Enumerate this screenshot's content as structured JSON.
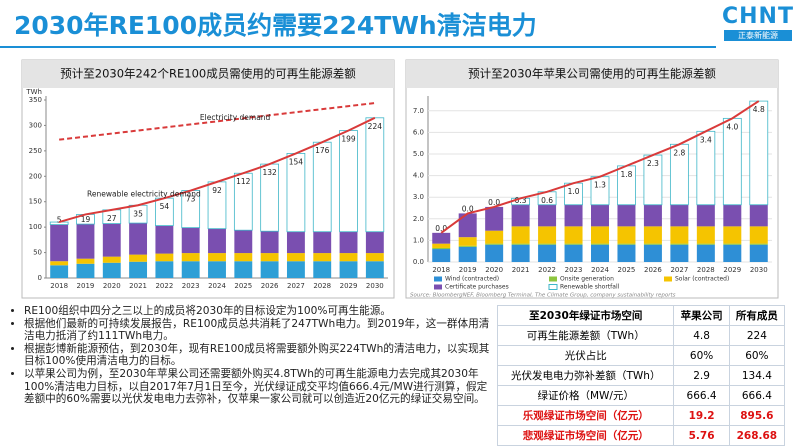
{
  "header": {
    "title": "2030年RE100成员约需要224TWh清洁电力",
    "logo": "CHNT",
    "logo_sub": "正泰新能源"
  },
  "chart_data": [
    {
      "type": "bar",
      "title": "预计至2030年242个RE100成员需使用的可再生能源差额",
      "y_unit": "TWh",
      "annotations": [
        "Electricity demand",
        "Renewable electricity demand"
      ],
      "categories": [
        "2018",
        "2019",
        "2020",
        "2021",
        "2022",
        "2023",
        "2024",
        "2025",
        "2026",
        "2027",
        "2028",
        "2029",
        "2030"
      ],
      "ylim": [
        0,
        350
      ],
      "yticks": [
        0,
        50,
        100,
        150,
        200,
        250,
        300,
        350
      ],
      "grid": false,
      "series": [
        {
          "color": "#2e9fd6",
          "values": [
            25,
            28,
            30,
            32,
            33,
            33,
            33,
            33,
            33,
            33,
            33,
            33,
            33
          ]
        },
        {
          "color": "#f5c400",
          "values": [
            8,
            10,
            12,
            14,
            15,
            16,
            16,
            16,
            16,
            16,
            16,
            16,
            16
          ]
        },
        {
          "color": "#7a4fb0",
          "values": [
            72,
            68,
            65,
            62,
            55,
            50,
            48,
            45,
            43,
            42,
            42,
            42,
            42
          ]
        },
        {
          "color": "#ffffff",
          "outline": "#3fb6c8",
          "values": [
            5,
            19,
            27,
            35,
            54,
            73,
            92,
            112,
            132,
            154,
            176,
            199,
            224
          ]
        },
        {
          "type": "line",
          "color": "#d93a3a",
          "dashed": false,
          "values": [
            110,
            125,
            134,
            143,
            157,
            172,
            189,
            206,
            224,
            245,
            267,
            290,
            315
          ]
        },
        {
          "type": "line",
          "color": "#d93a3a",
          "dashed": true,
          "values": [
            272,
            278,
            284,
            290,
            296,
            302,
            308,
            314,
            320,
            326,
            332,
            338,
            344
          ]
        }
      ]
    },
    {
      "type": "bar",
      "title": "预计至2030年苹果公司需使用的可再生能源差额",
      "source": "Source: BloombergNEF, Bloomberg Terminal, The Climate Group, company sustainability reports",
      "categories": [
        "2018",
        "2019",
        "2020",
        "2021",
        "2022",
        "2023",
        "2024",
        "2025",
        "2026",
        "2027",
        "2028",
        "2029",
        "2030"
      ],
      "ylim": [
        0,
        7.5
      ],
      "yticks": [
        {
          "value": 0,
          "label": "0.0"
        },
        {
          "value": 1,
          "label": "1.0"
        },
        {
          "value": 2,
          "label": "2.0"
        },
        {
          "value": 3,
          "label": "3.0"
        },
        {
          "value": 4,
          "label": "4.0"
        },
        {
          "value": 5,
          "label": "5.0"
        },
        {
          "value": 6,
          "label": "6.0"
        },
        {
          "value": 7,
          "label": "7.0"
        }
      ],
      "grid": true,
      "series": [
        {
          "name": "Wind (contracted)",
          "color": "#2e8fd6",
          "values": [
            0.6,
            0.7,
            0.8,
            0.8,
            0.8,
            0.8,
            0.8,
            0.8,
            0.8,
            0.8,
            0.8,
            0.8,
            0.8
          ]
        },
        {
          "name": "Onsite generation",
          "color": "#8ec63f",
          "values": [
            0.05,
            0.05,
            0.05,
            0.05,
            0.05,
            0.05,
            0.05,
            0.05,
            0.05,
            0.05,
            0.05,
            0.05,
            0.05
          ]
        },
        {
          "name": "Solar (contracted)",
          "color": "#f5c400",
          "values": [
            0.2,
            0.4,
            0.6,
            0.8,
            0.8,
            0.8,
            0.8,
            0.8,
            0.8,
            0.8,
            0.8,
            0.8,
            0.8
          ]
        },
        {
          "name": "Certificate purchases",
          "color": "#7a4fb0",
          "values": [
            0.5,
            1.1,
            1.1,
            1.0,
            1.0,
            1.0,
            1.0,
            1.0,
            1.0,
            1.0,
            1.0,
            1.0,
            1.0
          ]
        },
        {
          "name": "Renewable shortfall",
          "color": "#ffffff",
          "outline": "#3fb6c8",
          "values": [
            0,
            0,
            0,
            0.3,
            0.6,
            1,
            1.3,
            1.8,
            2.3,
            2.8,
            3.4,
            4,
            4.8
          ],
          "value_labels": [
            "0.0",
            "0.0",
            "0.0",
            "0.3",
            "0.6",
            "1.0",
            "1.3",
            "1.8",
            "2.3",
            "2.8",
            "3.4",
            "4.0",
            "4.8"
          ]
        },
        {
          "type": "line",
          "color": "#d93a3a",
          "dashed": false,
          "values": [
            1.35,
            2.25,
            2.55,
            2.95,
            3.25,
            3.65,
            3.95,
            4.45,
            4.95,
            5.45,
            6.05,
            6.65,
            7.45
          ]
        }
      ]
    }
  ],
  "bullets": [
    "RE100组织中四分之三以上的成员将2030年的目标设定为100%可再生能源。",
    "根据他们最新的可持续发展报告，RE100成员总共消耗了247TWh电力。到2019年，这一群体用清洁电力抵消了约111TWh电力。",
    "根据彭博新能源预估，到2030年，现有RE100成员将需要额外购买224TWh的清洁电力，以实现其目标100%使用清洁电力的目标。",
    "以苹果公司为例，至2030年苹果公司还需要额外购买4.8TWh的可再生能源电力去完成其2030年100%清洁电力目标，以自2017年7月1日至今，光伏绿证成交平均值666.4元/MW进行测算，假定差额中的60%需要以光伏发电电力去弥补，仅苹果一家公司就可以创造近20亿元的绿证交易空间。"
  ],
  "table": {
    "header": [
      "至2030年绿证市场空间",
      "苹果公司",
      "所有成员"
    ],
    "rows": [
      [
        "可再生能源差额（TWh）",
        "4.8",
        "224"
      ],
      [
        "光伏占比",
        "60%",
        "60%"
      ],
      [
        "光伏发电电力弥补差额（TWh）",
        "2.9",
        "134.4"
      ],
      [
        "绿证价格（MW/元）",
        "666.4",
        "666.4"
      ],
      [
        "乐观绿证市场空间（亿元）",
        "19.2",
        "895.6"
      ],
      [
        "悲观绿证市场空间（亿元）",
        "5.76",
        "268.68"
      ]
    ]
  }
}
